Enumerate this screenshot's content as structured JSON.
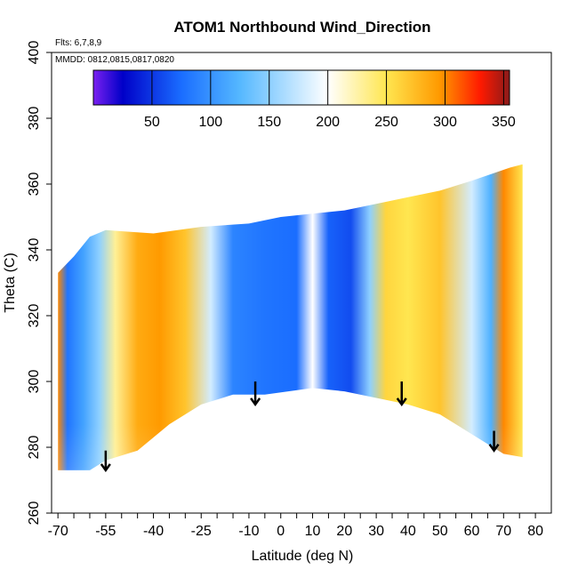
{
  "chart_data": {
    "type": "heatmap",
    "title": "ATOM1 Northbound Wind_Direction",
    "flights_note": "Flts: 6,7,8,9",
    "dates_note": "MMDD: 0812,0815,0817,0820",
    "xlabel": "Latitude (deg N)",
    "ylabel": "Theta (C)",
    "xlim": [
      -72,
      85
    ],
    "ylim": [
      260,
      400
    ],
    "x_ticks_major": [
      -70,
      -55,
      -40,
      -25,
      -10,
      0,
      10,
      20,
      30,
      40,
      50,
      60,
      70,
      80
    ],
    "x_tick_labels": [
      "-70",
      "-55",
      "-40",
      "-25",
      "-10",
      "0",
      "10",
      "20",
      "30",
      "40",
      "50",
      "60",
      "70",
      "80"
    ],
    "x_ticks_minor_step": 5,
    "y_ticks": [
      260,
      280,
      300,
      320,
      340,
      360,
      380,
      400
    ],
    "y_tick_labels": [
      "260",
      "280",
      "300",
      "320",
      "340",
      "360",
      "380",
      "400"
    ],
    "colorbar": {
      "min": 0,
      "max": 355,
      "ticks": [
        50,
        100,
        150,
        200,
        250,
        300,
        350
      ],
      "tick_labels": [
        "50",
        "100",
        "150",
        "200",
        "250",
        "300",
        "350"
      ],
      "colors": [
        "#7a20f0",
        "#0000c8",
        "#1a6dff",
        "#55b8ff",
        "#ffffff",
        "#ffe650",
        "#ff9a00",
        "#ff1a00",
        "#8a1a1a"
      ],
      "color_stops": [
        0,
        25,
        75,
        125,
        200,
        250,
        295,
        330,
        355
      ]
    },
    "data_region": {
      "top_boundary": [
        [
          -70,
          333
        ],
        [
          -65,
          338
        ],
        [
          -60,
          344
        ],
        [
          -55,
          346
        ],
        [
          -40,
          345
        ],
        [
          -25,
          347
        ],
        [
          -10,
          348
        ],
        [
          0,
          350
        ],
        [
          10,
          351
        ],
        [
          20,
          352
        ],
        [
          30,
          354
        ],
        [
          40,
          356
        ],
        [
          50,
          358
        ],
        [
          60,
          361
        ],
        [
          72,
          365
        ],
        [
          76,
          366
        ]
      ],
      "bottom_boundary": [
        [
          -70,
          273
        ],
        [
          -60,
          273
        ],
        [
          -55,
          276
        ],
        [
          -45,
          279
        ],
        [
          -35,
          287
        ],
        [
          -25,
          293
        ],
        [
          -15,
          296
        ],
        [
          -5,
          296
        ],
        [
          10,
          298
        ],
        [
          20,
          297
        ],
        [
          30,
          295
        ],
        [
          40,
          293
        ],
        [
          50,
          290
        ],
        [
          60,
          284
        ],
        [
          70,
          278
        ],
        [
          76,
          277
        ]
      ]
    },
    "field_regimes": [
      {
        "lat": -70,
        "value": 300
      },
      {
        "lat": -67,
        "value": 80
      },
      {
        "lat": -62,
        "value": 110
      },
      {
        "lat": -57,
        "value": 150
      },
      {
        "lat": -52,
        "value": 230
      },
      {
        "lat": -45,
        "value": 285
      },
      {
        "lat": -38,
        "value": 295
      },
      {
        "lat": -30,
        "value": 270
      },
      {
        "lat": -22,
        "value": 180
      },
      {
        "lat": -15,
        "value": 90
      },
      {
        "lat": -5,
        "value": 80
      },
      {
        "lat": 5,
        "value": 75
      },
      {
        "lat": 10,
        "value": 200
      },
      {
        "lat": 15,
        "value": 70
      },
      {
        "lat": 22,
        "value": 60
      },
      {
        "lat": 28,
        "value": 150
      },
      {
        "lat": 33,
        "value": 260
      },
      {
        "lat": 40,
        "value": 250
      },
      {
        "lat": 50,
        "value": 270
      },
      {
        "lat": 60,
        "value": 180
      },
      {
        "lat": 66,
        "value": 120
      },
      {
        "lat": 70,
        "value": 300
      },
      {
        "lat": 76,
        "value": 250
      }
    ],
    "arrows": [
      {
        "lat": -55,
        "theta_from": 279,
        "theta_to": 273
      },
      {
        "lat": -8,
        "theta_from": 300,
        "theta_to": 293
      },
      {
        "lat": 38,
        "theta_from": 300,
        "theta_to": 293
      },
      {
        "lat": 67,
        "theta_from": 285,
        "theta_to": 279
      }
    ]
  }
}
